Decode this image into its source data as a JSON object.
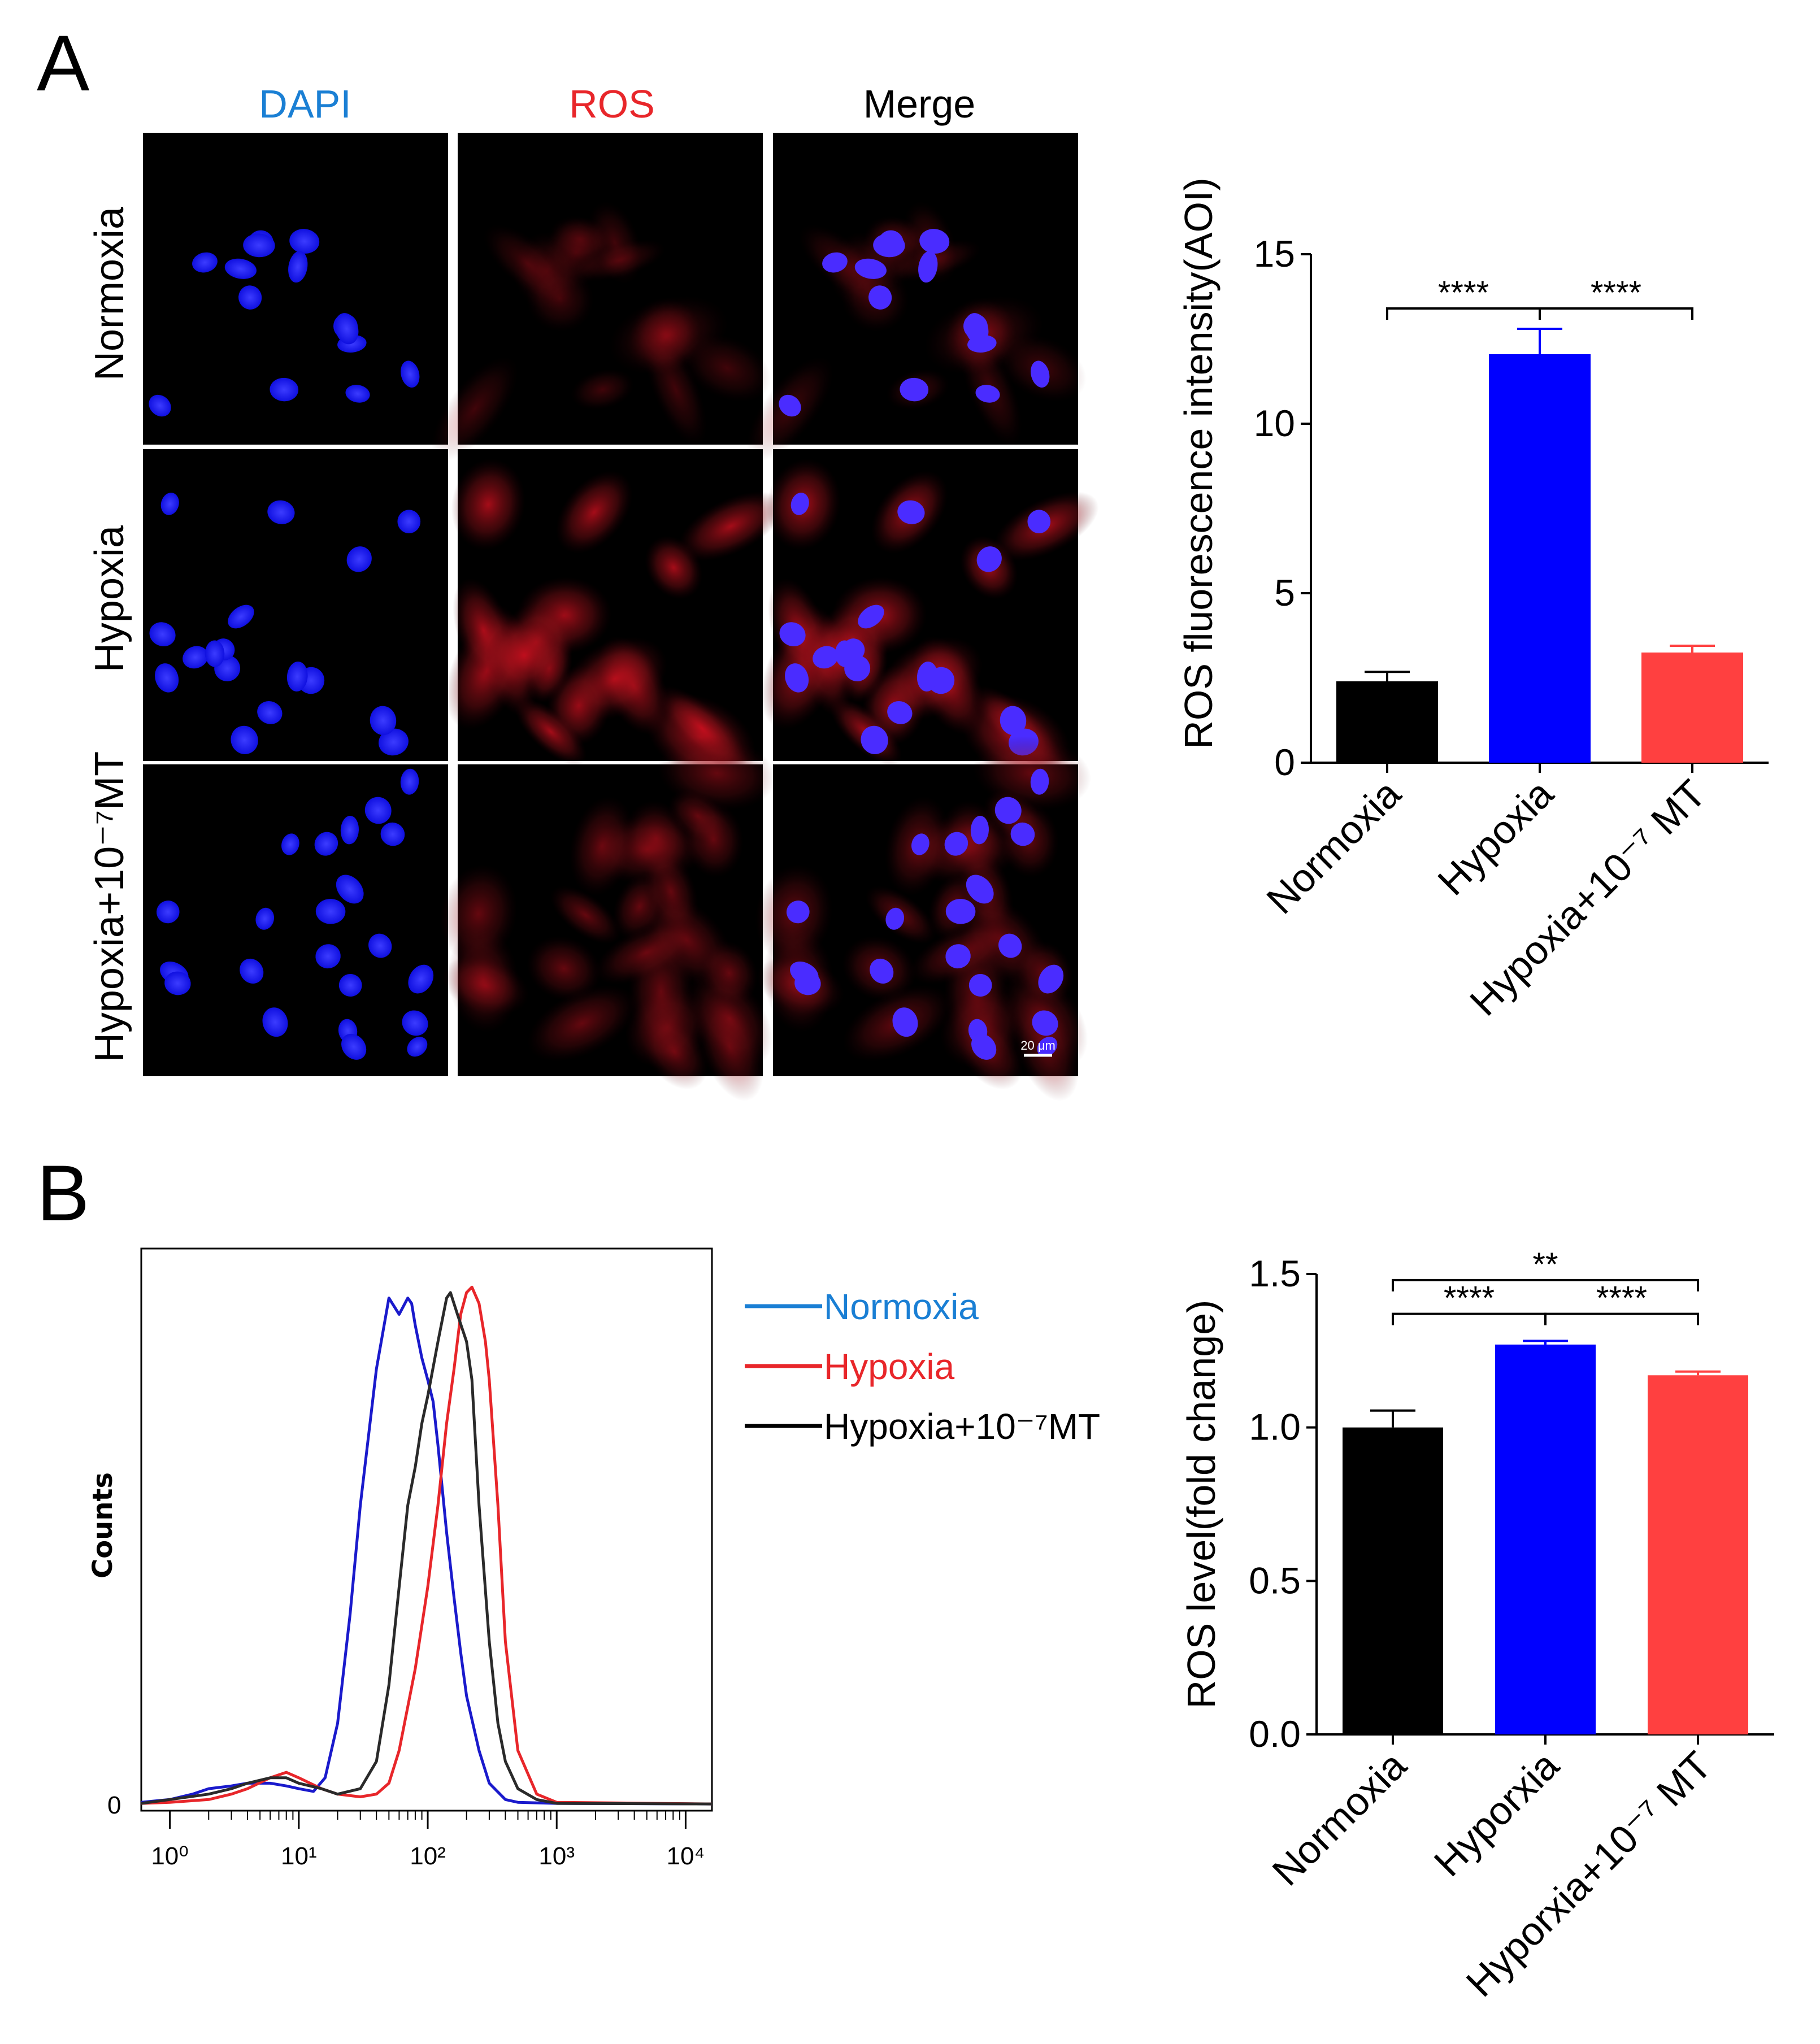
{
  "panel_a": {
    "letter": "A",
    "columns": [
      {
        "label": "DAPI",
        "color": "#1a7fd4"
      },
      {
        "label": "ROS",
        "color": "#e8262a"
      },
      {
        "label": "Merge",
        "color": "#000000"
      }
    ],
    "rows": [
      "Normoxia",
      "Hypoxia",
      "Hypoxia+10⁻⁷MT"
    ],
    "scale_bar": "20 μm"
  },
  "panel_b": {
    "letter": "B",
    "flow": {
      "ylabel": "Counts",
      "y_zero": "0",
      "x_ticks": [
        "10⁰",
        "10¹",
        "10²",
        "10³",
        "10⁴"
      ],
      "legend": [
        {
          "label": "Normoxia",
          "color": "#1a7fd4"
        },
        {
          "label": "Hypoxia",
          "color": "#e8262a"
        },
        {
          "label": "Hypoxia+10⁻⁷MT",
          "color": "#000000"
        }
      ]
    }
  },
  "chart_data": [
    {
      "type": "bar",
      "id": "bar_a",
      "title": "",
      "ylabel": "ROS  fluorescence intensity(AOI)",
      "xlabel": "",
      "ylim": [
        0,
        15
      ],
      "yticks": [
        0,
        5,
        10,
        15
      ],
      "ytick_labels": [
        "0",
        "5",
        "10",
        "15"
      ],
      "categories": [
        "Normoxia",
        "Hypoxia",
        "Hypoxia+10⁻⁷ MT"
      ],
      "values": [
        2.4,
        12.05,
        3.25
      ],
      "errors": [
        0.28,
        0.75,
        0.2
      ],
      "colors": [
        "#000000",
        "#0000ff",
        "#ff4040"
      ],
      "significance": [
        {
          "from": 0,
          "to": 1,
          "label": "****",
          "level": 13.4
        },
        {
          "from": 1,
          "to": 2,
          "label": "****",
          "level": 13.4
        }
      ]
    },
    {
      "type": "bar",
      "id": "bar_b",
      "title": "",
      "ylabel": "ROS  level(fold change)",
      "xlabel": "",
      "ylim": [
        0,
        1.5
      ],
      "yticks": [
        0,
        0.5,
        1.0,
        1.5
      ],
      "ytick_labels": [
        "0.0",
        "0.5",
        "1.0",
        "1.5"
      ],
      "categories": [
        "Normoxia",
        "Hyporxia",
        "Hyporxia+10⁻⁷ MT"
      ],
      "values": [
        1.0,
        1.27,
        1.17
      ],
      "errors": [
        0.055,
        0.012,
        0.012
      ],
      "colors": [
        "#000000",
        "#0000ff",
        "#ff4040"
      ],
      "significance": [
        {
          "from": 0,
          "to": 2,
          "label": "**",
          "level": 1.48
        },
        {
          "from": 0,
          "to": 1,
          "label": "****",
          "level": 1.37
        },
        {
          "from": 1,
          "to": 2,
          "label": "****",
          "level": 1.37
        }
      ]
    },
    {
      "type": "line",
      "id": "flow_histogram",
      "title": "",
      "xlabel": "",
      "ylabel": "Counts",
      "x_scale": "log10",
      "xlim": [
        0.6,
        16000
      ],
      "ylim": [
        0,
        100
      ],
      "series": [
        {
          "name": "Normoxia",
          "color": "#1a1acc",
          "x": [
            0.6,
            1,
            1.5,
            2,
            3,
            4,
            6,
            8,
            10,
            13,
            16,
            20,
            25,
            30,
            40,
            50,
            60,
            70,
            75,
            80,
            90,
            100,
            110,
            120,
            140,
            160,
            180,
            200,
            250,
            300,
            400,
            500,
            1000,
            16000
          ],
          "y": [
            0.5,
            1,
            2,
            3,
            3.5,
            4,
            4,
            3.5,
            3,
            2.5,
            5,
            15,
            35,
            55,
            80,
            93,
            90,
            93,
            92,
            88,
            82,
            78,
            74,
            66,
            50,
            38,
            28,
            20,
            10,
            4,
            1,
            0.5,
            0.3,
            0.2
          ]
        },
        {
          "name": "Hypoxia",
          "color": "#e8262a",
          "x": [
            0.6,
            1,
            2,
            3,
            4,
            6,
            8,
            10,
            15,
            20,
            30,
            40,
            50,
            60,
            80,
            100,
            120,
            140,
            160,
            180,
            200,
            220,
            250,
            280,
            300,
            350,
            400,
            500,
            700,
            1000,
            16000
          ],
          "y": [
            0.3,
            0.5,
            1,
            2,
            3,
            5,
            6,
            5,
            3,
            2,
            1.5,
            2,
            4,
            10,
            25,
            40,
            55,
            70,
            80,
            90,
            94,
            95,
            92,
            85,
            78,
            55,
            30,
            10,
            2,
            0.5,
            0.2
          ]
        },
        {
          "name": "Hypoxia+10⁻⁷MT",
          "color": "#2a2a2a",
          "x": [
            0.6,
            1,
            2,
            3,
            4,
            6,
            8,
            10,
            15,
            20,
            30,
            40,
            50,
            60,
            70,
            80,
            90,
            100,
            120,
            140,
            150,
            170,
            200,
            220,
            250,
            300,
            350,
            400,
            500,
            700,
            1000,
            16000
          ],
          "y": [
            0.3,
            1,
            2,
            3,
            4,
            5,
            5,
            4,
            3,
            2,
            3,
            8,
            22,
            40,
            55,
            62,
            70,
            75,
            85,
            93,
            94,
            90,
            85,
            78,
            55,
            30,
            15,
            8,
            3,
            1,
            0.3,
            0.2
          ]
        }
      ]
    }
  ]
}
